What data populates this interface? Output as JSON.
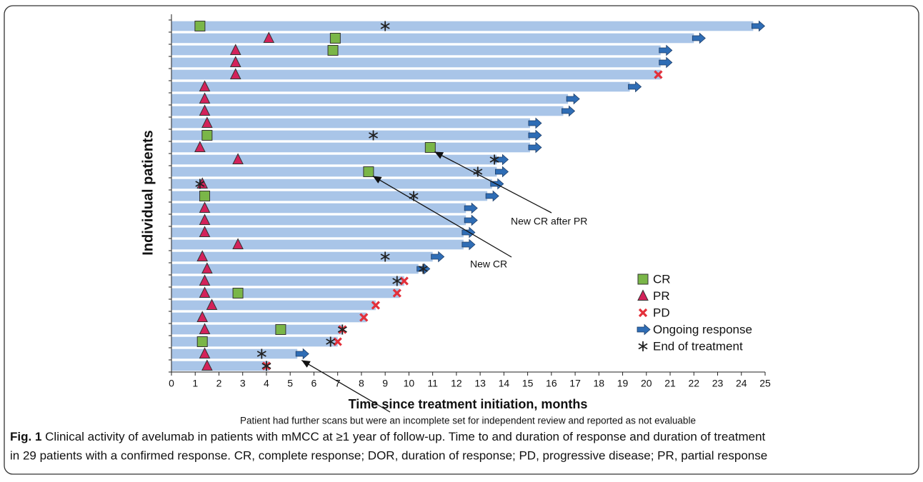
{
  "chart_data": {
    "type": "swimmer",
    "x_label": "Time since treatment initiation, months",
    "y_label": "Individual patients",
    "xlim": [
      0,
      25
    ],
    "xticks": [
      0,
      1,
      2,
      3,
      4,
      5,
      6,
      7,
      8,
      9,
      10,
      11,
      12,
      13,
      14,
      15,
      16,
      17,
      18,
      19,
      20,
      21,
      22,
      23,
      24,
      25
    ],
    "bar_color": "#a9c5e8",
    "durations": [
      24.5,
      22.0,
      20.6,
      20.6,
      20.6,
      19.3,
      16.7,
      16.5,
      15.1,
      15.1,
      15.1,
      13.7,
      13.7,
      13.5,
      13.3,
      12.4,
      12.4,
      12.3,
      12.3,
      11.0,
      10.4,
      9.8,
      9.6,
      8.6,
      8.2,
      7.2,
      7.0,
      5.3,
      4.1
    ],
    "series": [
      {
        "name": "CR",
        "marker": "square",
        "color": "#7ab648",
        "values": [
          1.2,
          6.9,
          6.8,
          null,
          null,
          null,
          null,
          null,
          null,
          1.5,
          10.9,
          null,
          8.3,
          null,
          1.4,
          null,
          null,
          null,
          null,
          null,
          null,
          null,
          2.8,
          null,
          null,
          4.6,
          1.3,
          null,
          null
        ]
      },
      {
        "name": "PR",
        "marker": "triangle",
        "color": "#d3225a",
        "values": [
          null,
          4.1,
          2.7,
          2.7,
          2.7,
          1.4,
          1.4,
          1.4,
          1.5,
          null,
          1.2,
          2.8,
          null,
          1.3,
          null,
          1.4,
          1.4,
          1.4,
          2.8,
          1.3,
          1.5,
          1.4,
          1.4,
          1.7,
          1.3,
          1.4,
          null,
          1.4,
          1.5
        ]
      },
      {
        "name": "PD",
        "marker": "cross",
        "color": "#e3303a",
        "values": [
          null,
          null,
          null,
          null,
          20.5,
          null,
          null,
          null,
          null,
          null,
          null,
          null,
          null,
          null,
          null,
          null,
          null,
          null,
          null,
          null,
          null,
          9.8,
          9.5,
          8.6,
          8.1,
          7.2,
          7.0,
          null,
          4.0
        ]
      },
      {
        "name": "Ongoing response",
        "marker": "arrow",
        "color": "#2f6db5",
        "values": [
          true,
          true,
          true,
          true,
          false,
          true,
          true,
          true,
          true,
          true,
          true,
          true,
          true,
          true,
          true,
          true,
          true,
          true,
          true,
          true,
          true,
          false,
          false,
          false,
          false,
          false,
          false,
          true,
          false
        ]
      },
      {
        "name": "End of treatment",
        "marker": "asterisk",
        "color": "#222222",
        "values": [
          9.0,
          null,
          null,
          null,
          null,
          null,
          null,
          null,
          null,
          8.5,
          null,
          13.6,
          12.9,
          1.2,
          10.2,
          null,
          null,
          null,
          null,
          9.0,
          10.6,
          9.5,
          null,
          null,
          null,
          7.2,
          6.7,
          3.8,
          4.0
        ]
      }
    ],
    "legend": "lower-right",
    "annotations": [
      "New CR after PR",
      "New CR",
      "Patient had further scans but were an incomplete set for independent review and reported as not evaluable"
    ]
  },
  "caption": {
    "label": "Fig. 1",
    "lines": [
      "Clinical activity of avelumab in patients with mMCC at ≥1 year of follow-up. Time to and duration of response and duration of treatment",
      "in 29 patients with a confirmed response. CR, complete response; DOR, duration of response; PD, progressive disease; PR, partial response"
    ]
  }
}
